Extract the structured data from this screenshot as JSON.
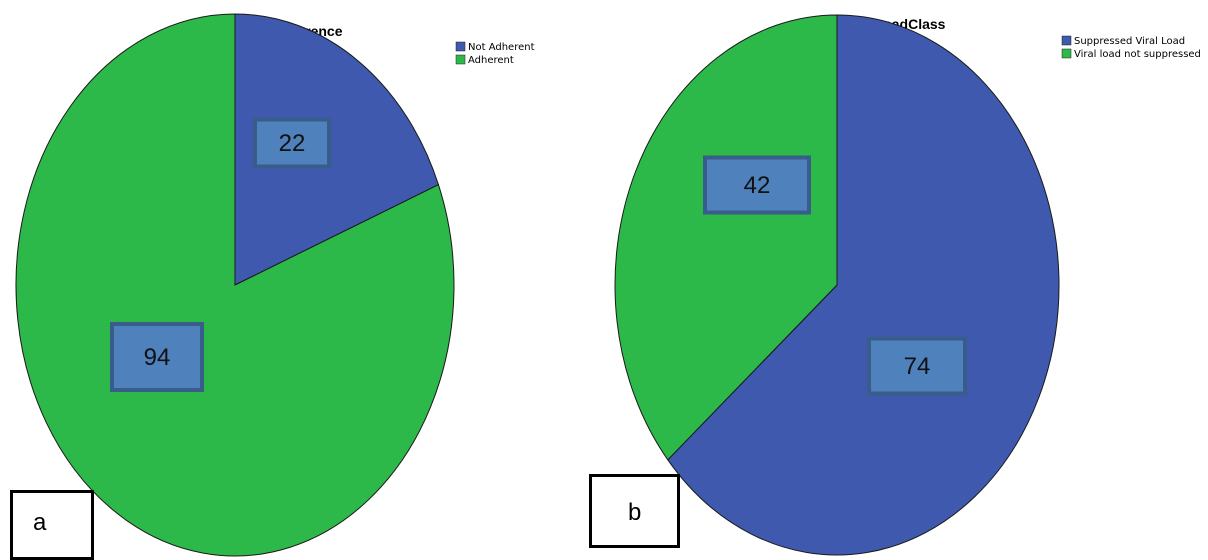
{
  "chart_data": [
    {
      "type": "pie",
      "title": "DrugAdherence",
      "categories": [
        "Not Adherent",
        "Adherent"
      ],
      "values": [
        22,
        94
      ],
      "colors": [
        "#3e59ad",
        "#2db84a"
      ],
      "legend_position": "top-right",
      "panel_label": "a"
    },
    {
      "type": "pie",
      "title": "ViralLoadClass",
      "categories": [
        "Suppressed Viral Load",
        "Viral load not suppressed"
      ],
      "values": [
        74,
        42
      ],
      "colors": [
        "#3e59ad",
        "#2db84a"
      ],
      "legend_position": "top-right",
      "panel_label": "b"
    }
  ]
}
